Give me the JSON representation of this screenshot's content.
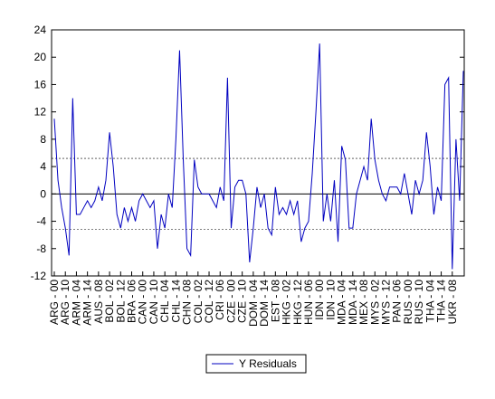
{
  "chart_data": {
    "type": "line",
    "categories": [
      "ARG - 00",
      null,
      null,
      "ARG - 10",
      null,
      null,
      "ARM - 04",
      null,
      null,
      "ARM - 14",
      null,
      null,
      "AUS - 08",
      null,
      null,
      "BOL - 02",
      null,
      null,
      "BOL - 12",
      null,
      null,
      "BRA - 06",
      null,
      null,
      "CAN - 00",
      null,
      null,
      "CAN - 10",
      null,
      null,
      "CHL - 04",
      null,
      null,
      "CHL - 14",
      null,
      null,
      "CHN - 08",
      null,
      null,
      "COL - 02",
      null,
      null,
      "COL - 12",
      null,
      null,
      "CRI - 06",
      null,
      null,
      "CZE - 00",
      null,
      null,
      "CZE - 10",
      null,
      null,
      "DOM - 04",
      null,
      null,
      "DOM - 14",
      null,
      null,
      "EST - 08",
      null,
      null,
      "HKG - 02",
      null,
      null,
      "HKG - 12",
      null,
      null,
      "HUN - 06",
      null,
      null,
      "IDN - 00",
      null,
      null,
      "IDN - 10",
      null,
      null,
      "MDA - 04",
      null,
      null,
      "MDA - 14",
      null,
      null,
      "MEX - 08",
      null,
      null,
      "MYS - 02",
      null,
      null,
      "MYS - 12",
      null,
      null,
      "PAN - 06",
      null,
      null,
      "RUS - 00",
      null,
      null,
      "RUS - 10",
      null,
      null,
      "THA - 04",
      null,
      null,
      "THA - 14",
      null,
      null,
      "UKR - 08",
      null,
      null,
      null
    ],
    "series": [
      {
        "name": "Y Residuals",
        "color": "#0000c0",
        "values": [
          11,
          2,
          -2,
          -5,
          -9,
          14,
          -3,
          -3,
          -2,
          -1,
          -2,
          -1,
          1,
          -1,
          2,
          9,
          4,
          -3,
          -5,
          -2,
          -4,
          -2,
          -4,
          -1,
          0,
          -1,
          -2,
          -1,
          -8,
          -3,
          -5,
          0,
          -2,
          8,
          21,
          5,
          -8,
          -9,
          5,
          1,
          0,
          0,
          0,
          -1,
          -2,
          1,
          -1,
          17,
          -5,
          1,
          2,
          2,
          0,
          -10,
          -5,
          1,
          -2,
          0,
          -5,
          -6,
          1,
          -3,
          -2,
          -3,
          -1,
          -3,
          -1,
          -7,
          -5,
          -4,
          3,
          12,
          22,
          -4,
          0,
          -4,
          2,
          -7,
          7,
          5,
          -5,
          -5,
          0,
          2,
          4,
          2,
          11,
          5,
          2,
          0,
          -1,
          1,
          1,
          1,
          0,
          3,
          0,
          -3,
          2,
          0,
          2,
          9,
          4,
          -3,
          1,
          -1,
          16,
          17,
          -11,
          8,
          -1,
          18
        ]
      }
    ],
    "ylim": [
      -12,
      24
    ],
    "yticks": [
      -12,
      -8,
      -4,
      0,
      4,
      8,
      12,
      16,
      20,
      24
    ],
    "hlines": [
      {
        "value": 0,
        "style": "solid"
      },
      {
        "value": 5.2,
        "style": "dashed"
      },
      {
        "value": -5.2,
        "style": "dashed"
      }
    ],
    "legend": "bottom"
  }
}
